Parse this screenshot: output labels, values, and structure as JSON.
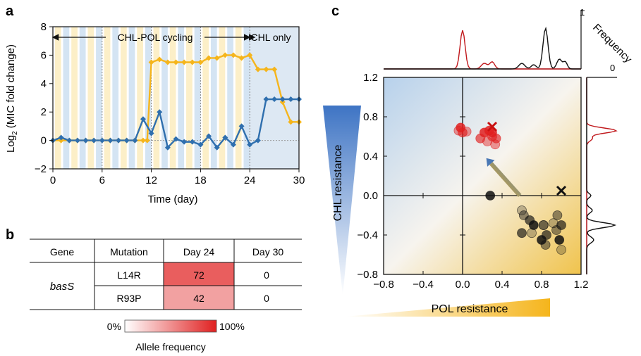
{
  "panels": {
    "a": "a",
    "b": "b",
    "c": "c"
  },
  "colors": {
    "yellow": "#F5B51C",
    "blue": "#2F6FAE",
    "red": "#E02020",
    "black": "#111111",
    "stripe_yellow": "#FCEFC8",
    "stripe_blue": "#D4E4F3"
  },
  "panel_b": {
    "headers": [
      "Gene",
      "Mutation",
      "Day 24",
      "Day 30"
    ],
    "gene": "basS",
    "rows": [
      {
        "mutation": "L14R",
        "day24": "72",
        "day30": "0"
      },
      {
        "mutation": "R93P",
        "day24": "42",
        "day30": "0"
      }
    ],
    "colorbar": {
      "min_label": "0%",
      "max_label": "100%",
      "title": "Allele frequency"
    }
  },
  "chart_data": [
    {
      "type": "line",
      "ylabel": "Log2 (MIC fold change)",
      "xlabel": "Time (day)",
      "xlim": [
        0,
        30
      ],
      "ylim": [
        -2,
        8
      ],
      "xticks": [
        "0",
        "6",
        "12",
        "18",
        "24",
        "30"
      ],
      "yticks": [
        "−2",
        "0",
        "2",
        "4",
        "6",
        "8"
      ],
      "annotations": {
        "cycling": "CHL-POL cycling",
        "chl_only": "CHL only"
      },
      "series": [
        {
          "color": "yellow",
          "x": [
            0,
            1,
            2,
            3,
            4,
            5,
            6,
            7,
            8,
            9,
            10,
            11,
            11.5,
            12,
            13,
            14,
            15,
            16,
            17,
            18,
            19,
            20,
            21,
            22,
            23,
            24,
            25,
            26,
            27,
            28,
            29,
            30
          ],
          "y": [
            0,
            0,
            0,
            0,
            0,
            0,
            0,
            0,
            0,
            0,
            0,
            0,
            0,
            5.5,
            5.7,
            5.5,
            5.5,
            5.5,
            5.5,
            5.5,
            5.8,
            5.8,
            6,
            6,
            5.8,
            6,
            5,
            5,
            5,
            2.7,
            1.3,
            1.3
          ]
        },
        {
          "color": "blue",
          "x": [
            0,
            1,
            2,
            3,
            4,
            5,
            6,
            7,
            8,
            9,
            10,
            11,
            12,
            13,
            14,
            15,
            16,
            17,
            18,
            19,
            20,
            21,
            22,
            23,
            24,
            25,
            26,
            27,
            28,
            29,
            30
          ],
          "y": [
            0,
            0.2,
            0,
            0,
            0,
            0,
            0,
            0,
            0,
            0,
            0,
            1.5,
            0.5,
            2,
            -0.5,
            0.1,
            -0.1,
            -0.1,
            -0.3,
            0.3,
            -0.5,
            0.2,
            -0.3,
            1,
            -0.3,
            0,
            2.9,
            2.9,
            2.9,
            2.9,
            2.9
          ]
        }
      ]
    },
    {
      "type": "scatter",
      "xlabel": "POL resistance",
      "ylabel": "CHL resistance",
      "xlim": [
        -0.8,
        1.2
      ],
      "ylim": [
        -0.8,
        1.2
      ],
      "xticks": [
        "−0.8",
        "−0.4",
        "0.0",
        "0.4",
        "0.8",
        "1.2"
      ],
      "yticks": [
        "−0.8",
        "−0.4",
        "0.0",
        "0.4",
        "0.8",
        "1.2"
      ],
      "marginal_label": "Frequency",
      "marginal_ticks": [
        "0",
        "1"
      ],
      "series": [
        {
          "color": "red",
          "points": [
            [
              -0.04,
              0.66
            ],
            [
              0.0,
              0.64
            ],
            [
              -0.02,
              0.69
            ],
            [
              0.04,
              0.65
            ],
            [
              0.18,
              0.58
            ],
            [
              0.22,
              0.64
            ],
            [
              0.25,
              0.55
            ],
            [
              0.3,
              0.6
            ],
            [
              0.3,
              0.64
            ],
            [
              0.33,
              0.52
            ],
            [
              0.34,
              0.58
            ],
            [
              0.27,
              0.66
            ]
          ],
          "marker": [
            0.3,
            0.7
          ]
        },
        {
          "color": "black",
          "points": [
            [
              0.6,
              -0.15
            ],
            [
              0.62,
              -0.2
            ],
            [
              0.68,
              -0.25
            ],
            [
              0.72,
              -0.3
            ],
            [
              0.7,
              -0.38
            ],
            [
              0.82,
              -0.3
            ],
            [
              0.85,
              -0.4
            ],
            [
              0.8,
              -0.45
            ],
            [
              0.92,
              -0.28
            ],
            [
              0.95,
              -0.35
            ],
            [
              1.0,
              -0.3
            ],
            [
              0.98,
              -0.45
            ],
            [
              1.0,
              -0.55
            ],
            [
              0.84,
              -0.5
            ],
            [
              0.6,
              -0.38
            ],
            [
              0.28,
              0.0
            ],
            [
              0.82,
              -0.3
            ],
            [
              0.96,
              -0.2
            ]
          ],
          "marker": [
            1.0,
            0.05
          ]
        }
      ],
      "arrow": {
        "from": [
          0.58,
          0.0
        ],
        "to": [
          0.24,
          0.38
        ]
      }
    }
  ]
}
